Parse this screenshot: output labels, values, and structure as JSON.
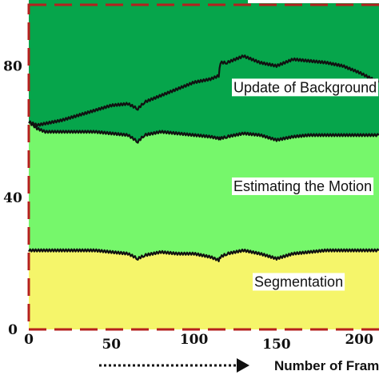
{
  "chart_data": {
    "type": "area",
    "stacked": true,
    "title": "",
    "xlabel": "Number of Frames",
    "ylabel": "",
    "xlim": [
      0,
      212
    ],
    "ylim": [
      0,
      100
    ],
    "x_ticks": [
      0,
      50,
      100,
      150,
      200
    ],
    "y_ticks": [
      0,
      40,
      80
    ],
    "grid": false,
    "colors": {
      "segmentation": "#f5f56a",
      "motion": "#76f76b",
      "background": "#06a54b",
      "boundary": "#b5201e",
      "line": "#111111"
    },
    "x": [
      0,
      5,
      10,
      20,
      30,
      40,
      50,
      60,
      66,
      70,
      80,
      90,
      100,
      110,
      115,
      116,
      120,
      130,
      140,
      150,
      160,
      170,
      180,
      190,
      200,
      212
    ],
    "series": [
      {
        "name": "Segmentation",
        "top": [
          24,
          24,
          24,
          24,
          24,
          24,
          23.5,
          23,
          21.5,
          22.5,
          23.5,
          23,
          23,
          22,
          21,
          22,
          23,
          24,
          23,
          21.5,
          23,
          23.5,
          24,
          24,
          24,
          24
        ]
      },
      {
        "name": "Estimating the Motion",
        "top": [
          63,
          61,
          60,
          60,
          60,
          60,
          59.5,
          59,
          57,
          59,
          60,
          59.5,
          59,
          58.5,
          58,
          58,
          58.5,
          59.5,
          59,
          57.5,
          58.5,
          59,
          59,
          59,
          59,
          59
        ]
      },
      {
        "name": "Update of Background",
        "top": [
          63,
          62,
          62.5,
          63.5,
          65,
          66.5,
          68,
          68.5,
          67,
          69,
          71,
          73,
          75,
          76,
          77,
          81,
          81,
          83,
          81,
          80,
          82,
          81.5,
          81,
          80,
          78,
          75
        ]
      }
    ],
    "annotations": [
      "Update of Background",
      "Estimating the Motion",
      "Segmentation"
    ],
    "arrow_direction": "right"
  }
}
